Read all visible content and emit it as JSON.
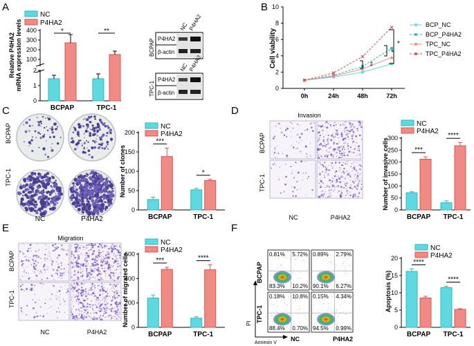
{
  "panels": {
    "a": {
      "label": "A",
      "legend": [
        "NC",
        "P4HA2"
      ],
      "ylabel": [
        "Relative P4HA2",
        "mRNA expression levels"
      ],
      "yticks_lower": [
        "0",
        "1",
        "2"
      ],
      "yticks_upper": [
        "100",
        "200",
        "300",
        "400"
      ],
      "sig": [
        "*",
        "**"
      ],
      "blot_bcpap": {
        "row_label": "BCPAP",
        "lanes": [
          "NC",
          "P4HA2"
        ],
        "bands": [
          "P4HA2",
          "β-actin"
        ]
      },
      "blot_tpc": {
        "row_label": "TPC-1",
        "lanes": [
          "NC",
          "P4HA2"
        ],
        "bands": [
          "P4HA2",
          "β-actin"
        ]
      }
    },
    "b": {
      "label": "B",
      "sig": [
        "**",
        "*",
        "*"
      ],
      "legend": [
        "BCP_NC",
        "BCP_P4HA2",
        "TPC_NC",
        "TPC_P4HA2"
      ]
    },
    "c": {
      "label": "C",
      "rows": [
        "BCPAP",
        "TPC-1"
      ],
      "cols": [
        "NC",
        "P4HA2"
      ],
      "legend": [
        "NC",
        "P4HA2"
      ],
      "sig": [
        "***",
        "*"
      ]
    },
    "d": {
      "label": "D",
      "title": "Invasion",
      "rows": [
        "BCPAP",
        "TPC-1"
      ],
      "cols": [
        "NC",
        "P4HA2"
      ],
      "legend": [
        "NC",
        "P4HA2"
      ],
      "sig": [
        "***",
        "****"
      ]
    },
    "e": {
      "label": "E",
      "title": "Migration",
      "rows": [
        "BCPAP",
        "TPC-1"
      ],
      "cols": [
        "NC",
        "P4HA2"
      ],
      "legend": [
        "NC",
        "P4HA2"
      ],
      "sig": [
        "***",
        "****"
      ]
    },
    "f": {
      "label": "F",
      "rows": [
        "BCPAP",
        "TPC-1"
      ],
      "cols": [
        "NC",
        "P4HA2"
      ],
      "axis_y": "PI",
      "axis_x": "Annexin V",
      "quadrants": [
        [
          "0.81%",
          "5.72%",
          "83.3%",
          "10.2%"
        ],
        [
          "0.89%",
          "2.79%",
          "90.1%",
          "6.27%"
        ],
        [
          "0.18%",
          "10.8%",
          "88.4%",
          "0.70%"
        ],
        [
          "0.15%",
          "4.34%",
          "94.5%",
          "0.99%"
        ]
      ],
      "legend": [
        "NC",
        "P4HA2"
      ],
      "sig": [
        "****",
        "****"
      ]
    }
  },
  "colors": {
    "nc": "#5fd8e0",
    "p4ha2": "#f08a84",
    "nc_dark": "#2ab8c2",
    "p4ha2_dark": "#d9534f"
  },
  "chart_data": [
    {
      "type": "bar",
      "panel": "A",
      "categories": [
        "BCPAP",
        "TPC-1"
      ],
      "series": [
        {
          "name": "NC",
          "values": [
            1,
            1
          ]
        },
        {
          "name": "P4HA2",
          "values": [
            270,
            95
          ]
        }
      ],
      "errors": [
        {
          "name": "NC",
          "values": [
            0.2,
            0.3
          ]
        },
        {
          "name": "P4HA2",
          "values": [
            100,
            35
          ]
        }
      ],
      "ylabel": "Relative P4HA2 mRNA expression levels",
      "broken_axis": {
        "lower": [
          0,
          2
        ],
        "upper": [
          0,
          400
        ]
      }
    },
    {
      "type": "line",
      "panel": "B",
      "x": [
        "0h",
        "24h",
        "48h",
        "72h"
      ],
      "series": [
        {
          "name": "BCP_NC",
          "values": [
            1.0,
            1.4,
            2.0,
            3.0
          ]
        },
        {
          "name": "BCP_P4HA2",
          "values": [
            1.0,
            1.6,
            2.7,
            4.9
          ]
        },
        {
          "name": "TPC_NC",
          "values": [
            1.0,
            1.5,
            2.4,
            3.8
          ]
        },
        {
          "name": "TPC_P4HA2",
          "values": [
            1.0,
            1.9,
            3.9,
            7.5
          ]
        }
      ],
      "ylabel": "Cell viability",
      "ylim": [
        0,
        10
      ],
      "yticks": [
        0,
        2,
        4,
        6,
        8,
        10
      ]
    },
    {
      "type": "bar",
      "panel": "C",
      "categories": [
        "BCPAP",
        "TPC-1"
      ],
      "series": [
        {
          "name": "NC",
          "values": [
            27,
            52
          ]
        },
        {
          "name": "P4HA2",
          "values": [
            138,
            76
          ]
        }
      ],
      "errors": [
        {
          "name": "NC",
          "values": [
            6,
            4
          ]
        },
        {
          "name": "P4HA2",
          "values": [
            22,
            3
          ]
        }
      ],
      "ylabel": "Number of clones",
      "ylim": [
        0,
        200
      ],
      "yticks": [
        0,
        50,
        100,
        150,
        200
      ]
    },
    {
      "type": "bar",
      "panel": "D",
      "categories": [
        "BCPAP",
        "TPC-1"
      ],
      "series": [
        {
          "name": "NC",
          "values": [
            72,
            30
          ]
        },
        {
          "name": "P4HA2",
          "values": [
            212,
            268
          ]
        }
      ],
      "errors": [
        {
          "name": "NC",
          "values": [
            4,
            8
          ]
        },
        {
          "name": "P4HA2",
          "values": [
            10,
            14
          ]
        }
      ],
      "ylabel": "Number of invasive cells",
      "ylim": [
        0,
        300
      ],
      "yticks": [
        0,
        50,
        100,
        150,
        200,
        250,
        300
      ]
    },
    {
      "type": "bar",
      "panel": "E",
      "categories": [
        "BCPAP",
        "TPC-1"
      ],
      "series": [
        {
          "name": "NC",
          "values": [
            240,
            75
          ]
        },
        {
          "name": "P4HA2",
          "values": [
            475,
            472
          ]
        }
      ],
      "errors": [
        {
          "name": "NC",
          "values": [
            25,
            12
          ]
        },
        {
          "name": "P4HA2",
          "values": [
            18,
            40
          ]
        }
      ],
      "ylabel": "Number of migrated cells",
      "ylim": [
        0,
        600
      ],
      "yticks": [
        0,
        200,
        400,
        600
      ]
    },
    {
      "type": "bar",
      "panel": "F",
      "categories": [
        "BCPAP",
        "TPC-1"
      ],
      "series": [
        {
          "name": "NC",
          "values": [
            16.2,
            11.5
          ]
        },
        {
          "name": "P4HA2",
          "values": [
            8.5,
            5.2
          ]
        }
      ],
      "errors": [
        {
          "name": "NC",
          "values": [
            0.7,
            0.4
          ]
        },
        {
          "name": "P4HA2",
          "values": [
            0.5,
            0.2
          ]
        }
      ],
      "ylabel": "Apoptosis (%)",
      "ylim": [
        0,
        20
      ],
      "yticks": [
        0,
        5,
        10,
        15,
        20
      ]
    }
  ]
}
